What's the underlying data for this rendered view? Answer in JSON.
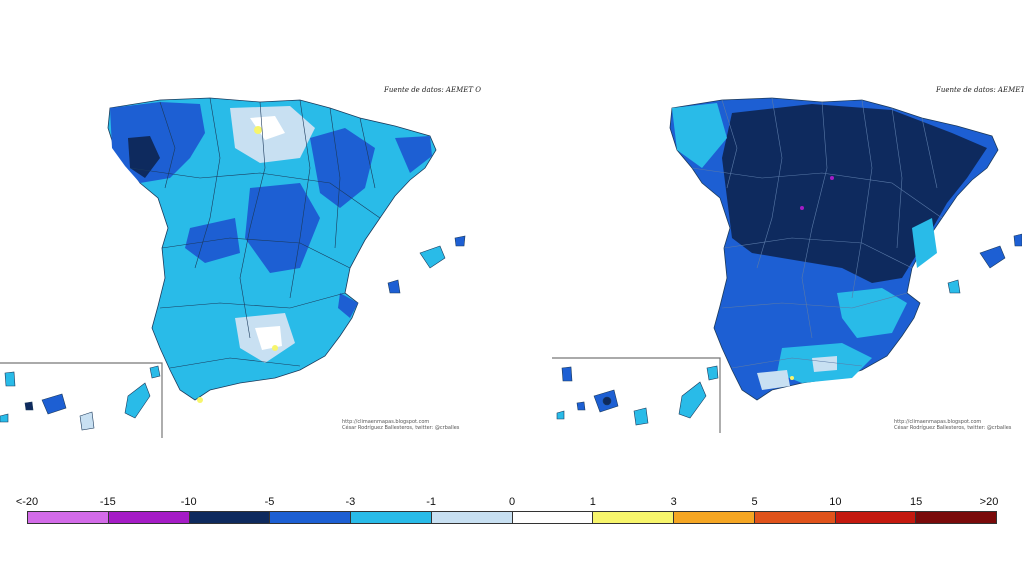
{
  "maps": [
    {
      "source_text": "Fuente de datos: AEMET O",
      "credit_line1": "http://climaenmapas.blogspot.com",
      "credit_line2": "César Rodríguez Ballesteros, twitter: @crballes"
    },
    {
      "source_text": "Fuente de datos: AEMET O",
      "credit_line1": "http://climaenmapas.blogspot.com",
      "credit_line2": "César Rodríguez Ballesteros, twitter: @crballes"
    }
  ],
  "legend": {
    "labels": [
      "<-20",
      "-15",
      "-10",
      "-5",
      "-3",
      "-1",
      "0",
      "1",
      "3",
      "5",
      "10",
      "15",
      ">20"
    ],
    "colors": [
      "#d36be8",
      "#a51cc6",
      "#0e2a5e",
      "#1d5fd3",
      "#29bbe8",
      "#c8e0f2",
      "#ffffff",
      "#f7f56c",
      "#f5a623",
      "#e0531b",
      "#c4190f",
      "#7a0a0a",
      "#6a3a10"
    ]
  }
}
